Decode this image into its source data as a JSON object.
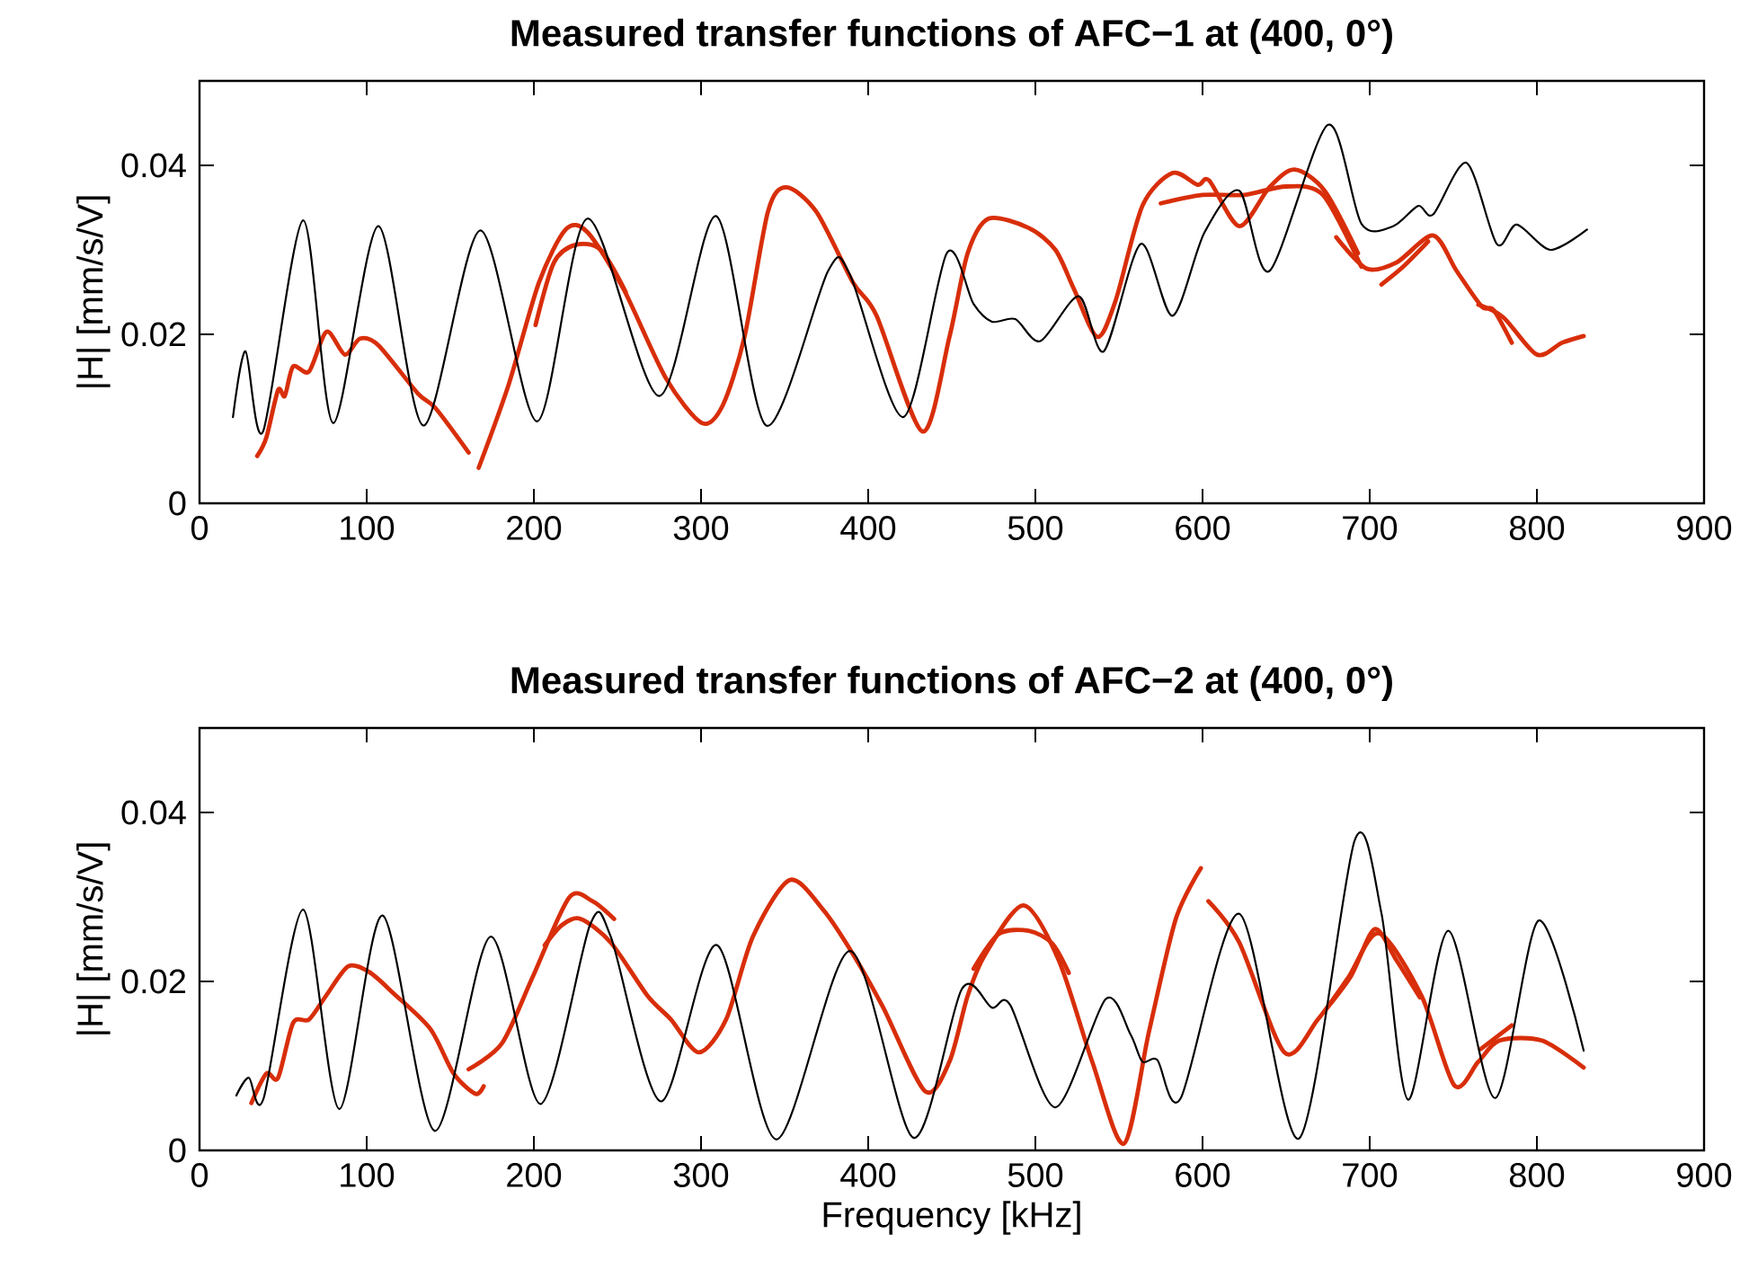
{
  "chart_data": [
    {
      "type": "line",
      "title": "Measured transfer functions of AFC−1 at (400, 0°)",
      "ylabel": "|H| [mm/s/V]",
      "xlim": [
        0,
        900
      ],
      "ylim": [
        0,
        0.05
      ],
      "xticks": [
        0,
        100,
        200,
        300,
        400,
        500,
        600,
        700,
        800,
        900
      ],
      "yticks": [
        0,
        0.02,
        0.04
      ],
      "grid": false,
      "series": [
        {
          "color": "#000000",
          "x": [
            20,
            27.5,
            38,
            62,
            80,
            107,
            134,
            168,
            202,
            232,
            275,
            309,
            339,
            376,
            389,
            421,
            447,
            463,
            474,
            488,
            503,
            526,
            541,
            563,
            582,
            601,
            622,
            640,
            675,
            695,
            714,
            729,
            738,
            758,
            776,
            788,
            808,
            830
          ],
          "values": [
            0.0102,
            0.018,
            0.0085,
            0.0335,
            0.0095,
            0.0328,
            0.0092,
            0.0323,
            0.0097,
            0.0337,
            0.0127,
            0.034,
            0.0092,
            0.0275,
            0.0271,
            0.0102,
            0.0296,
            0.0236,
            0.0215,
            0.0218,
            0.0192,
            0.0245,
            0.018,
            0.0307,
            0.0222,
            0.032,
            0.037,
            0.0275,
            0.0448,
            0.0331,
            0.0328,
            0.0352,
            0.0342,
            0.0403,
            0.0307,
            0.033,
            0.03,
            0.0324
          ]
        },
        {
          "color": "#d82e0a",
          "x": [
            34.5,
            40,
            47,
            51,
            56,
            65.5,
            76,
            87,
            96,
            107,
            130.6,
            141,
            161
          ],
          "values": [
            0.0056,
            0.0078,
            0.0134,
            0.0127,
            0.0162,
            0.0156,
            0.0203,
            0.0176,
            0.0195,
            0.0187,
            0.013,
            0.0113,
            0.006
          ]
        },
        {
          "color": "#d82e0a",
          "x": [
            167,
            185,
            203,
            219,
            232,
            253.5,
            279,
            300.5,
            313,
            326,
            340,
            351,
            369,
            391,
            405,
            432.5,
            448.6,
            459.5,
            472,
            496,
            512,
            523,
            537,
            548,
            564,
            582,
            597,
            604,
            622,
            640,
            655,
            673,
            693
          ],
          "values": [
            0.0042,
            0.0141,
            0.0261,
            0.0324,
            0.0321,
            0.0254,
            0.0148,
            0.0095,
            0.0116,
            0.0197,
            0.0345,
            0.0374,
            0.0345,
            0.0261,
            0.0222,
            0.0085,
            0.0197,
            0.0296,
            0.0337,
            0.0326,
            0.03,
            0.0254,
            0.0197,
            0.024,
            0.0352,
            0.0391,
            0.0377,
            0.0382,
            0.0328,
            0.0374,
            0.0395,
            0.037,
            0.0296
          ]
        },
        {
          "color": "#d82e0a",
          "x": [
            201,
            212,
            225,
            240,
            255
          ],
          "values": [
            0.0211,
            0.0285,
            0.0306,
            0.03,
            0.025
          ]
        },
        {
          "color": "#d82e0a",
          "x": [
            575,
            600,
            625,
            650,
            672,
            695
          ],
          "values": [
            0.0355,
            0.0365,
            0.0365,
            0.0375,
            0.0365,
            0.028
          ]
        },
        {
          "color": "#d82e0a",
          "x": [
            680,
            698,
            716,
            738,
            752,
            767,
            774,
            785
          ],
          "values": [
            0.0315,
            0.0278,
            0.0285,
            0.0317,
            0.0275,
            0.0233,
            0.0229,
            0.019
          ]
        },
        {
          "color": "#d82e0a",
          "x": [
            707,
            720,
            735
          ],
          "values": [
            0.0259,
            0.028,
            0.031
          ]
        },
        {
          "color": "#d82e0a",
          "x": [
            765,
            780,
            800,
            815,
            828
          ],
          "values": [
            0.0235,
            0.022,
            0.0176,
            0.019,
            0.0198
          ]
        }
      ]
    },
    {
      "type": "line",
      "title": "Measured transfer functions of AFC−2 at (400, 0°)",
      "xlabel": "Frequency [kHz]",
      "ylabel": "|H| [mm/s/V]",
      "xlim": [
        0,
        900
      ],
      "ylim": [
        0,
        0.05
      ],
      "xticks": [
        0,
        100,
        200,
        300,
        400,
        500,
        600,
        700,
        800,
        900
      ],
      "yticks": [
        0,
        0.02,
        0.04
      ],
      "grid": false,
      "series": [
        {
          "color": "#000000",
          "x": [
            22,
            29.5,
            38.4,
            62,
            83.6,
            109.5,
            140.7,
            174,
            204,
            233.6,
            246,
            276,
            309.5,
            345,
            389,
            427,
            456,
            474,
            485,
            512,
            542,
            557,
            564,
            573,
            587,
            622,
            657.7,
            691,
            707,
            723,
            747,
            775,
            801,
            828
          ],
          "values": [
            0.0065,
            0.0086,
            0.0062,
            0.0285,
            0.0049,
            0.0278,
            0.0023,
            0.0253,
            0.0055,
            0.0267,
            0.0253,
            0.0058,
            0.0243,
            0.0013,
            0.0236,
            0.0015,
            0.0191,
            0.0169,
            0.0172,
            0.0051,
            0.0179,
            0.0137,
            0.0105,
            0.0107,
            0.0062,
            0.028,
            0.0014,
            0.0367,
            0.0281,
            0.006,
            0.026,
            0.0062,
            0.0272,
            0.0118
          ]
        },
        {
          "color": "#d82e0a",
          "x": [
            31,
            40,
            47,
            56,
            65.5,
            76,
            89,
            101.6,
            116,
            138,
            152,
            165,
            170
          ],
          "values": [
            0.0056,
            0.0091,
            0.0086,
            0.0151,
            0.0155,
            0.0184,
            0.0218,
            0.0211,
            0.0186,
            0.0144,
            0.0091,
            0.0067,
            0.0076
          ]
        },
        {
          "color": "#d82e0a",
          "x": [
            161,
            181,
            199,
            221,
            235,
            248
          ],
          "values": [
            0.0096,
            0.0127,
            0.0204,
            0.0299,
            0.0295,
            0.0274
          ]
        },
        {
          "color": "#d82e0a",
          "x": [
            206.5,
            217,
            228,
            246,
            268,
            282,
            298.7,
            315,
            331,
            353,
            373,
            391,
            409,
            434,
            448.6,
            459.5,
            470,
            493,
            514,
            534,
            553,
            568,
            584,
            599
          ],
          "values": [
            0.0243,
            0.0267,
            0.0274,
            0.0246,
            0.0183,
            0.0155,
            0.0116,
            0.0155,
            0.0253,
            0.032,
            0.0285,
            0.0232,
            0.0169,
            0.007,
            0.0105,
            0.0183,
            0.0232,
            0.029,
            0.0225,
            0.0105,
            0.0008,
            0.0141,
            0.0274,
            0.0334
          ]
        },
        {
          "color": "#d82e0a",
          "x": [
            463,
            478,
            496,
            510,
            520
          ],
          "values": [
            0.0215,
            0.0256,
            0.026,
            0.0245,
            0.021
          ]
        },
        {
          "color": "#d82e0a",
          "x": [
            603.5,
            622,
            649,
            669,
            687,
            705.5,
            731,
            750.6,
            765,
            777.6,
            803,
            828
          ],
          "values": [
            0.0295,
            0.0246,
            0.0116,
            0.0155,
            0.0204,
            0.0257,
            0.0183,
            0.0077,
            0.0105,
            0.013,
            0.013,
            0.0098
          ]
        },
        {
          "color": "#d82e0a",
          "x": [
            673,
            689,
            703,
            716,
            730
          ],
          "values": [
            0.0165,
            0.0207,
            0.0262,
            0.0225,
            0.0181
          ]
        },
        {
          "color": "#d82e0a",
          "x": [
            766.5,
            785
          ],
          "values": [
            0.012,
            0.0148
          ]
        }
      ]
    }
  ]
}
